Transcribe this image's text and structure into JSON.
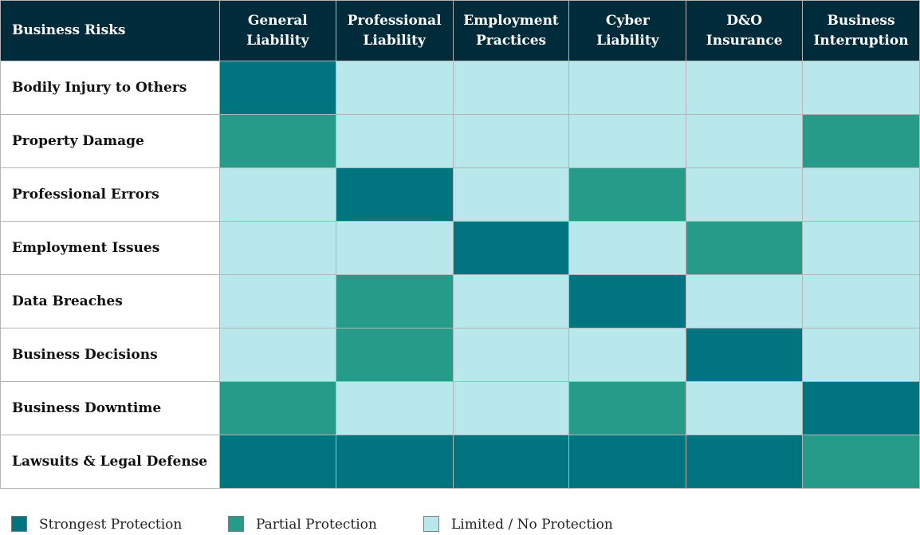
{
  "chart_data": {
    "type": "heatmap",
    "corner_label": "Business Risks",
    "columns": [
      [
        "General",
        "Liability"
      ],
      [
        "Professional",
        "Liability"
      ],
      [
        "Employment",
        "Practices"
      ],
      [
        "Cyber",
        "Liability"
      ],
      [
        "D&O",
        "Insurance"
      ],
      [
        "Business",
        "Interruption"
      ]
    ],
    "rows": [
      "Bodily Injury to Others",
      "Property Damage",
      "Professional Errors",
      "Employment Issues",
      "Data Breaches",
      "Business Decisions",
      "Business Downtime",
      "Lawsuits & Legal Defense"
    ],
    "levels": {
      "strong": {
        "label": "Strongest Protection",
        "color": "#00757f"
      },
      "partial": {
        "label": "Partial Protection",
        "color": "#279b89"
      },
      "limited": {
        "label": "Limited / No Protection",
        "color": "#b8e8ec"
      }
    },
    "legend_order": [
      "strong",
      "partial",
      "limited"
    ],
    "values": [
      [
        "strong",
        "limited",
        "limited",
        "limited",
        "limited",
        "limited"
      ],
      [
        "partial",
        "limited",
        "limited",
        "limited",
        "limited",
        "partial"
      ],
      [
        "limited",
        "strong",
        "limited",
        "partial",
        "limited",
        "limited"
      ],
      [
        "limited",
        "limited",
        "strong",
        "limited",
        "partial",
        "limited"
      ],
      [
        "limited",
        "partial",
        "limited",
        "strong",
        "limited",
        "limited"
      ],
      [
        "limited",
        "partial",
        "limited",
        "limited",
        "strong",
        "limited"
      ],
      [
        "partial",
        "limited",
        "limited",
        "partial",
        "limited",
        "strong"
      ],
      [
        "strong",
        "strong",
        "strong",
        "strong",
        "strong",
        "partial"
      ]
    ],
    "legend_position": "bottom-left"
  }
}
